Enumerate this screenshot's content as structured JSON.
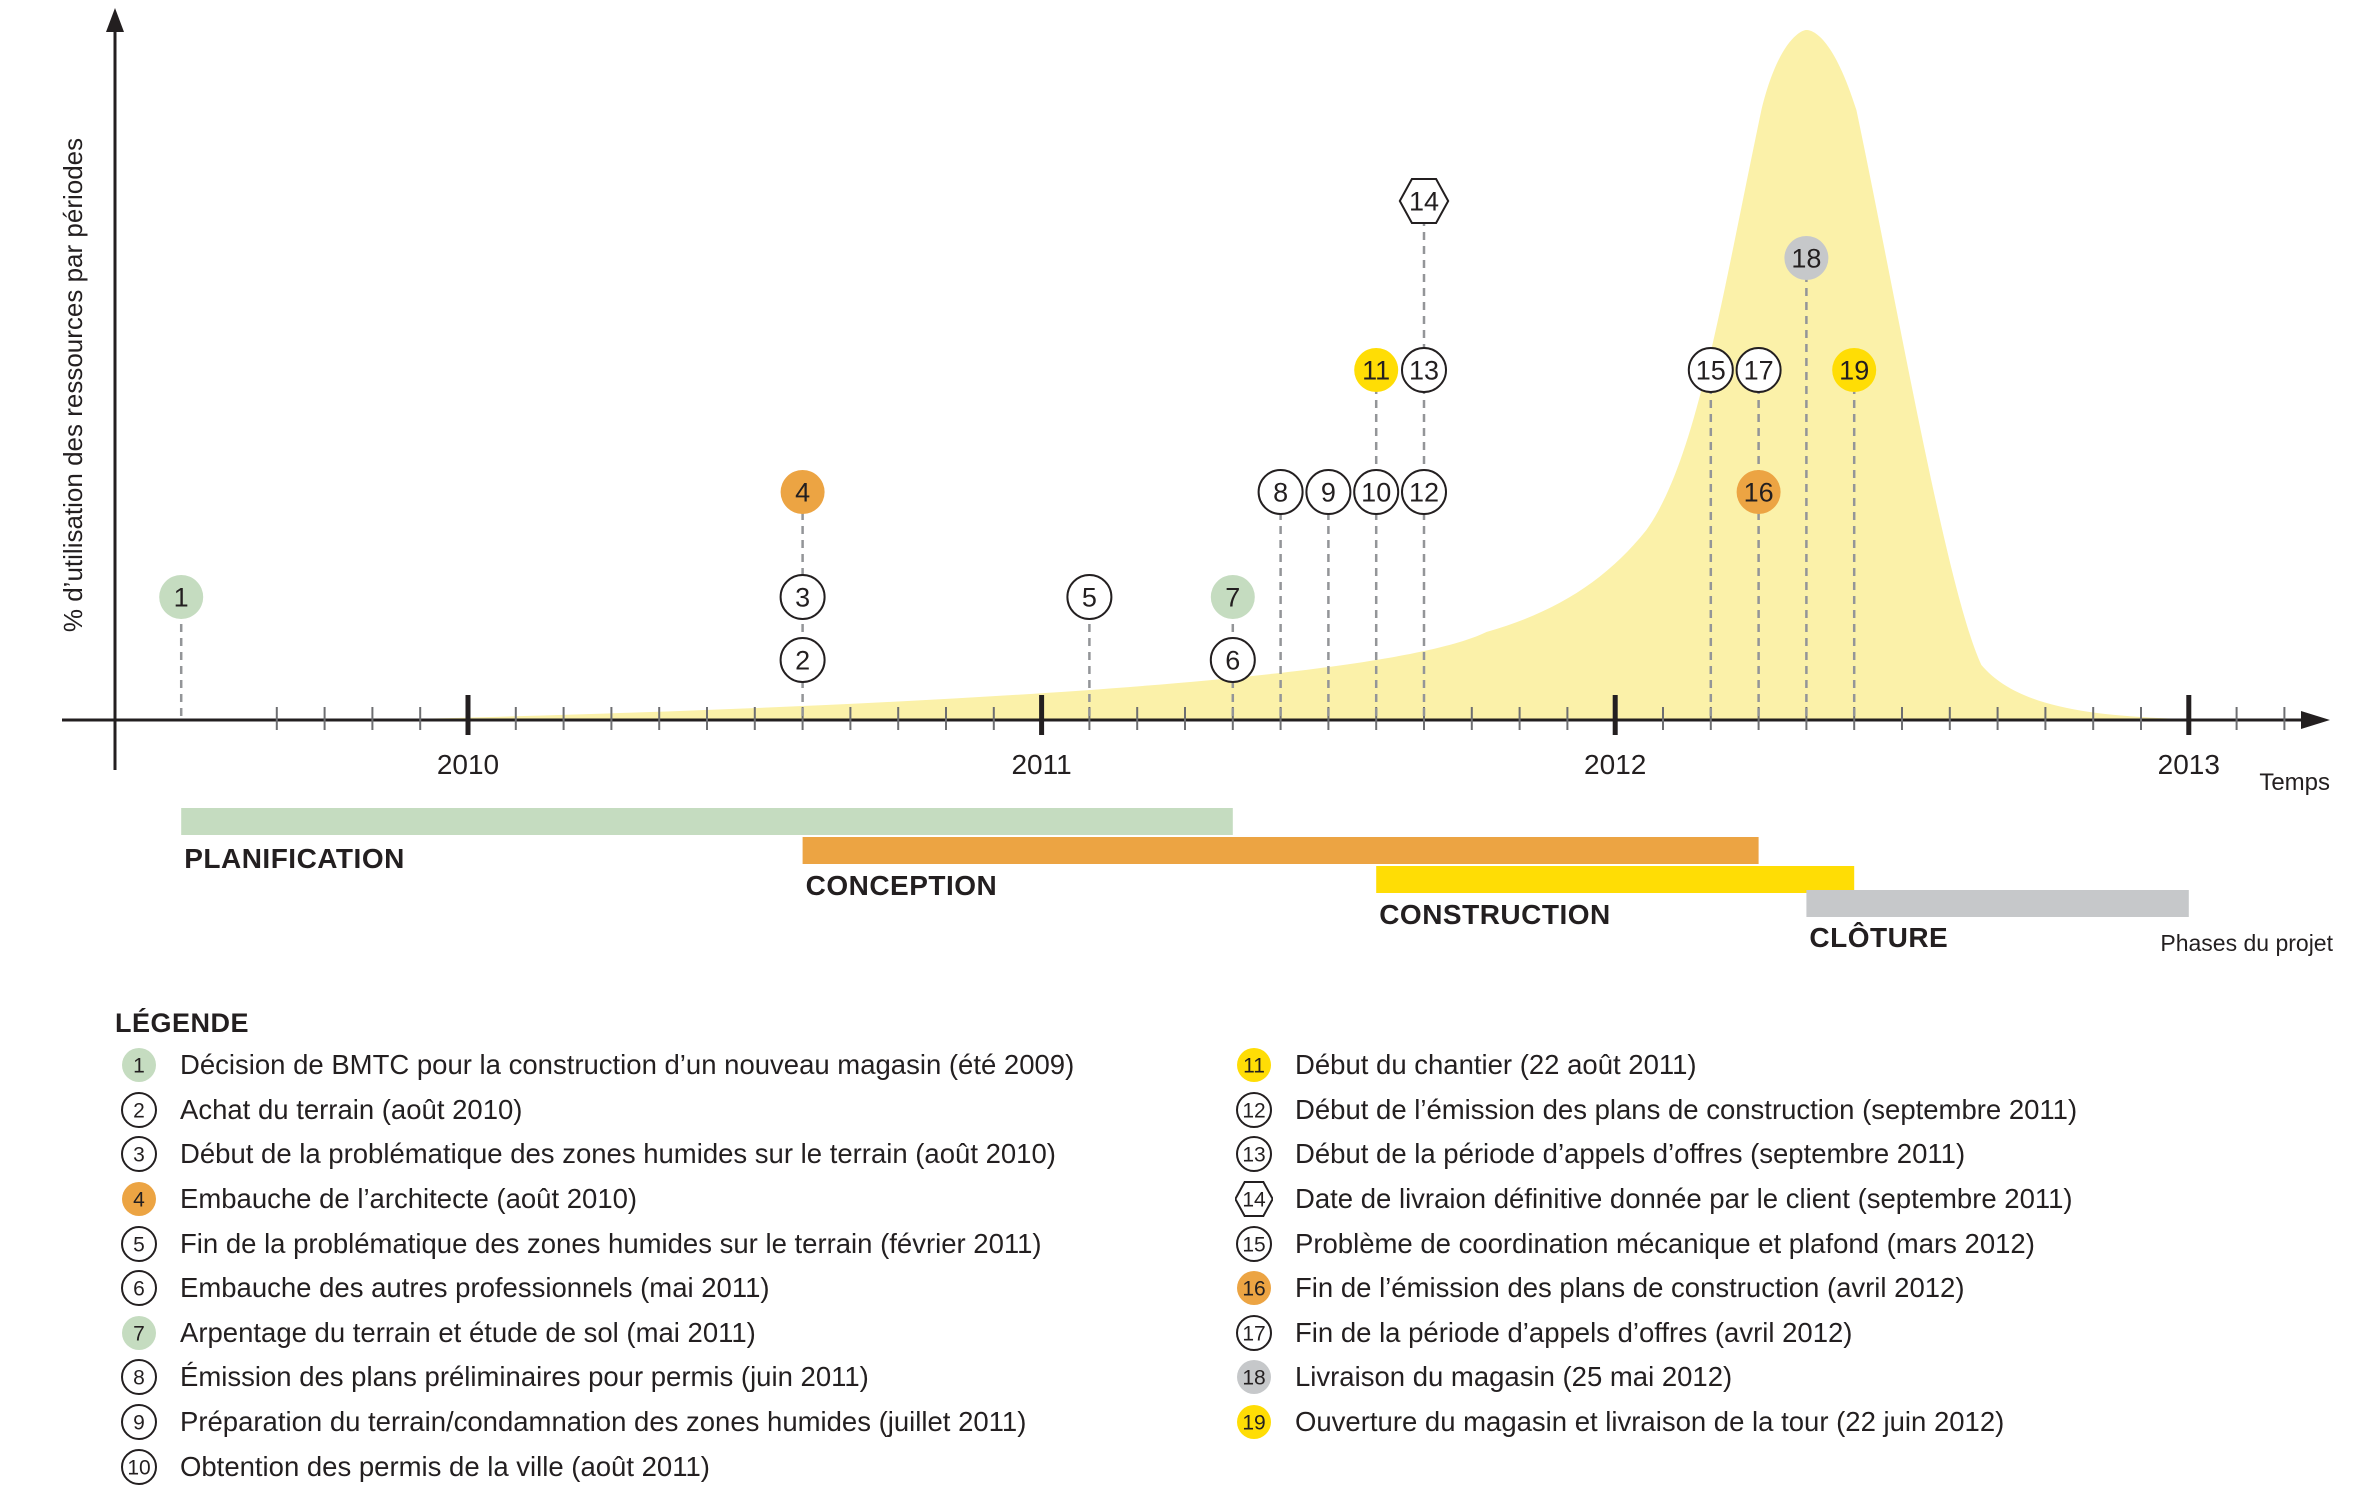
{
  "axes": {
    "ylabel": "% d’utilisation des ressources par périodes",
    "xlabel": "Temps",
    "years": [
      "2010",
      "2011",
      "2012",
      "2013"
    ],
    "tick_per_year": 12
  },
  "curve": {
    "color": "#fbf1a9",
    "peak_date": "2012-05"
  },
  "phases_label": "Phases du projet",
  "phases": [
    {
      "name": "PLANIFICATION",
      "start": "2009-07",
      "end": "2011-05",
      "color": "#c5dcc0"
    },
    {
      "name": "CONCEPTION",
      "start": "2010-08",
      "end": "2012-04",
      "color": "#eca443"
    },
    {
      "name": "CONSTRUCTION",
      "start": "2011-08",
      "end": "2012-06",
      "color": "#ffdd05"
    },
    {
      "name": "CLÔTURE",
      "start": "2012-05",
      "end": "2013-01",
      "color": "#c6c8ca"
    }
  ],
  "colors": {
    "green": "#c5dcc0",
    "orange": "#eca443",
    "yellow": "#ffdd05",
    "gray": "#c6c8ca",
    "white": "#ffffff"
  },
  "milestones": [
    {
      "n": "1",
      "date": "2009-07",
      "level": 1,
      "style": "green"
    },
    {
      "n": "2",
      "date": "2010-08",
      "level": 0,
      "style": "white"
    },
    {
      "n": "3",
      "date": "2010-08",
      "level": 1,
      "style": "white"
    },
    {
      "n": "4",
      "date": "2010-08",
      "level": 2,
      "style": "orange"
    },
    {
      "n": "5",
      "date": "2011-02",
      "level": 1,
      "style": "white"
    },
    {
      "n": "6",
      "date": "2011-05",
      "level": 0,
      "style": "white"
    },
    {
      "n": "7",
      "date": "2011-05",
      "level": 1,
      "style": "green"
    },
    {
      "n": "8",
      "date": "2011-06",
      "level": 2,
      "style": "white"
    },
    {
      "n": "9",
      "date": "2011-07",
      "level": 2,
      "style": "white"
    },
    {
      "n": "10",
      "date": "2011-08",
      "level": 2,
      "style": "white"
    },
    {
      "n": "11",
      "date": "2011-08",
      "level": 3,
      "style": "yellow"
    },
    {
      "n": "12",
      "date": "2011-09",
      "level": 2,
      "style": "white"
    },
    {
      "n": "13",
      "date": "2011-09",
      "level": 3,
      "style": "white"
    },
    {
      "n": "14",
      "date": "2011-09",
      "level": 4,
      "style": "hexagon"
    },
    {
      "n": "15",
      "date": "2012-03",
      "level": 3,
      "style": "white"
    },
    {
      "n": "16",
      "date": "2012-04",
      "level": 2,
      "style": "orange"
    },
    {
      "n": "17",
      "date": "2012-04",
      "level": 3,
      "style": "white"
    },
    {
      "n": "18",
      "date": "2012-05",
      "level": 5,
      "style": "gray"
    },
    {
      "n": "19",
      "date": "2012-06",
      "level": 3,
      "style": "yellow"
    }
  ],
  "legend": {
    "title": "LÉGENDE",
    "items": [
      {
        "n": "1",
        "style": "green",
        "text": "Décision de BMTC pour la construction d’un nouveau magasin (été 2009)"
      },
      {
        "n": "2",
        "style": "white",
        "text": "Achat du terrain (août 2010)"
      },
      {
        "n": "3",
        "style": "white",
        "text": "Début de la problématique des zones humides sur le terrain (août 2010)"
      },
      {
        "n": "4",
        "style": "orange",
        "text": "Embauche de l’architecte (août 2010)"
      },
      {
        "n": "5",
        "style": "white",
        "text": "Fin de la problématique des zones humides sur le terrain (février 2011)"
      },
      {
        "n": "6",
        "style": "white",
        "text": "Embauche des autres professionnels (mai 2011)"
      },
      {
        "n": "7",
        "style": "green",
        "text": "Arpentage du terrain et étude de sol (mai 2011)"
      },
      {
        "n": "8",
        "style": "white",
        "text": "Émission des plans préliminaires pour permis (juin 2011)"
      },
      {
        "n": "9",
        "style": "white",
        "text": "Préparation du terrain/condamnation des zones humides (juillet 2011)"
      },
      {
        "n": "10",
        "style": "white",
        "text": "Obtention des permis de la ville (août 2011)"
      },
      {
        "n": "11",
        "style": "yellow",
        "text": "Début du chantier (22 août 2011)"
      },
      {
        "n": "12",
        "style": "white",
        "text": "Début de l’émission des plans de construction (septembre 2011)"
      },
      {
        "n": "13",
        "style": "white",
        "text": "Début de la période d’appels d’offres (septembre 2011)"
      },
      {
        "n": "14",
        "style": "hexagon",
        "text": "Date de livraion définitive donnée par le client (septembre 2011)"
      },
      {
        "n": "15",
        "style": "white",
        "text": "Problème de coordination mécanique et plafond (mars 2012)"
      },
      {
        "n": "16",
        "style": "orange",
        "text": "Fin de l’émission des plans de construction (avril 2012)"
      },
      {
        "n": "17",
        "style": "white",
        "text": "Fin de la période d’appels d’offres (avril 2012)"
      },
      {
        "n": "18",
        "style": "gray",
        "text": "Livraison du magasin (25 mai 2012)"
      },
      {
        "n": "19",
        "style": "yellow",
        "text": "Ouverture du magasin et livraison de la tour (22 juin 2012)"
      }
    ]
  }
}
